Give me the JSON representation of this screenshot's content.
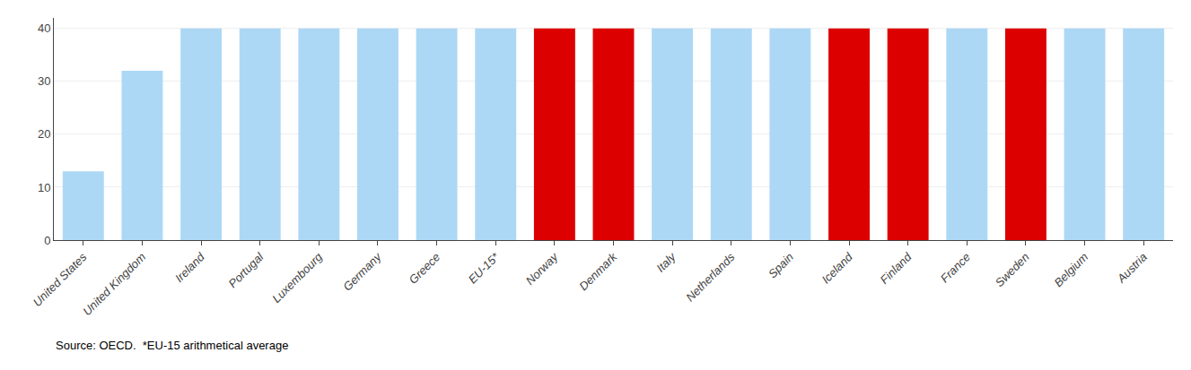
{
  "chart_data": {
    "type": "bar",
    "categories": [
      "United States",
      "United Kingdom",
      "Ireland",
      "Portugal",
      "Luxembourg",
      "Germany",
      "Greece",
      "EU-15*",
      "Norway",
      "Denmark",
      "Italy",
      "Netherlands",
      "Spain",
      "Iceland",
      "Finland",
      "France",
      "Sweden",
      "Belgium",
      "Austria"
    ],
    "values": [
      13,
      32,
      40,
      40,
      40,
      40,
      40,
      40,
      40,
      40,
      40,
      40,
      40,
      40,
      40,
      40,
      40,
      40,
      40
    ],
    "colors": [
      "#add8f5",
      "#add8f5",
      "#add8f5",
      "#add8f5",
      "#add8f5",
      "#add8f5",
      "#add8f5",
      "#add8f5",
      "#dd0000",
      "#dd0000",
      "#add8f5",
      "#add8f5",
      "#add8f5",
      "#dd0000",
      "#dd0000",
      "#add8f5",
      "#dd0000",
      "#add8f5",
      "#add8f5"
    ],
    "ylim": [
      0,
      42
    ],
    "yticks": [
      0,
      10,
      20,
      30,
      40
    ],
    "grid": true,
    "annotations": [
      "Source: OECD.  *EU-15 arithmetical average"
    ]
  }
}
